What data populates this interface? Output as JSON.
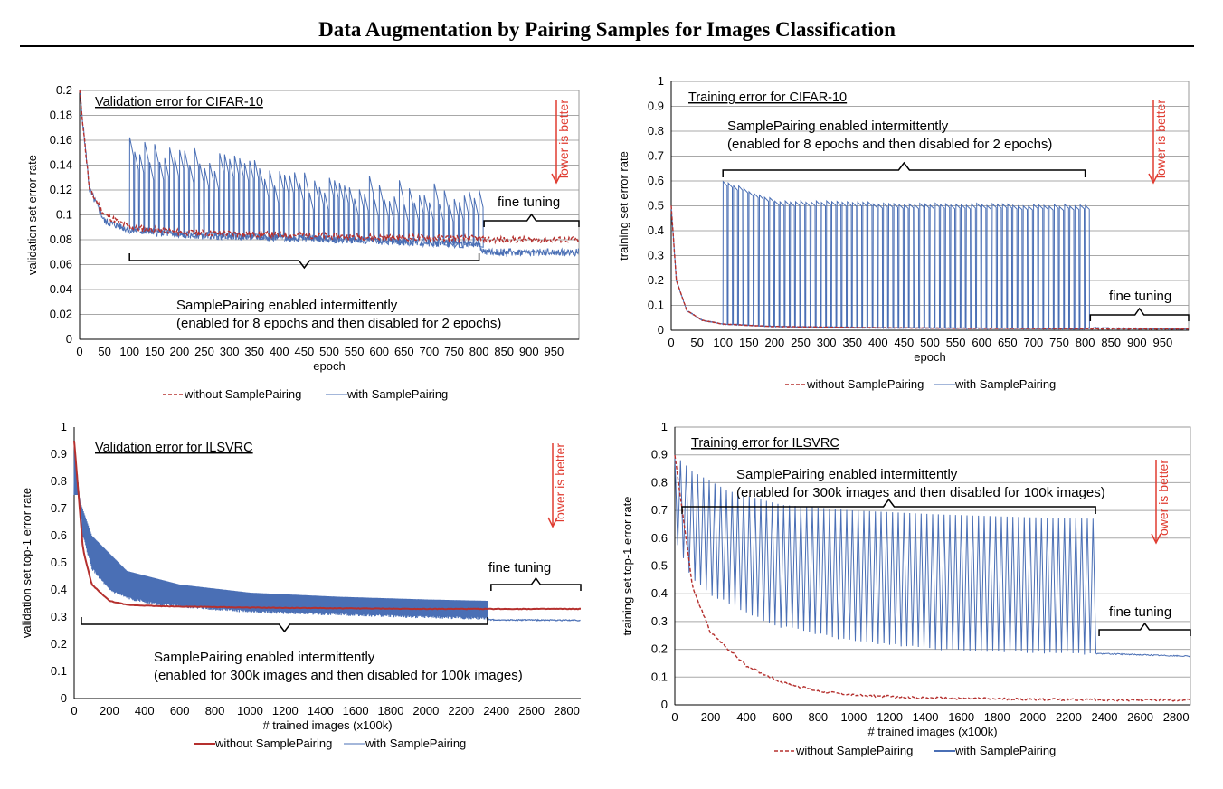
{
  "page": {
    "title": "Data Augmentation by Pairing Samples for Images Classification"
  },
  "colors": {
    "without": "#b5302e",
    "with": "#4a6fb5",
    "lower_arrow": "#e03c31"
  },
  "chart_data": [
    {
      "id": "cifar-val",
      "type": "line",
      "title": "Validation error for CIFAR-10",
      "xlabel": "epoch",
      "ylabel": "validation set error rate",
      "xlim": [
        0,
        1000
      ],
      "ylim": [
        0,
        0.2
      ],
      "xticks": [
        "0",
        "50",
        "100",
        "150",
        "200",
        "250",
        "300",
        "350",
        "400",
        "450",
        "500",
        "550",
        "600",
        "650",
        "700",
        "750",
        "800",
        "850",
        "900",
        "950"
      ],
      "yticks": [
        "0",
        "0.02",
        "0.04",
        "0.06",
        "0.08",
        "0.1",
        "0.12",
        "0.14",
        "0.16",
        "0.18",
        "0.2"
      ],
      "grid": true,
      "annotations": {
        "main_line1": "SamplePairing enabled intermittently",
        "main_line2": "(enabled for 8 epochs and then disabled for 2 epochs)",
        "fine": "fine tuning",
        "lower": "lower is better"
      },
      "legend": {
        "placement": "bottom",
        "without": "without SamplePairing",
        "with": "with SamplePairing"
      },
      "series": [
        {
          "name": "without SamplePairing",
          "style": "dashed",
          "x": [
            0,
            20,
            50,
            100,
            200,
            400,
            600,
            800,
            810,
            1000
          ],
          "y": [
            0.2,
            0.12,
            0.1,
            0.09,
            0.086,
            0.084,
            0.082,
            0.081,
            0.08,
            0.08
          ]
        },
        {
          "name": "with SamplePairing",
          "style": "solid",
          "x": [
            0,
            20,
            50,
            100,
            200,
            400,
            600,
            800,
            810,
            1000
          ],
          "y": [
            0.2,
            0.12,
            0.095,
            0.088,
            0.084,
            0.082,
            0.079,
            0.076,
            0.07,
            0.07
          ],
          "spike_high": [
            0.155,
            0.142,
            0.128,
            0.118,
            0.115
          ],
          "spike_x": [
            100,
            250,
            450,
            650,
            800
          ]
        }
      ]
    },
    {
      "id": "cifar-train",
      "type": "line",
      "title": "Training error for CIFAR-10",
      "xlabel": "epoch",
      "ylabel": "training set error rate",
      "xlim": [
        0,
        1000
      ],
      "ylim": [
        0,
        1
      ],
      "xticks": [
        "0",
        "50",
        "100",
        "150",
        "200",
        "250",
        "300",
        "350",
        "400",
        "450",
        "500",
        "550",
        "600",
        "650",
        "700",
        "750",
        "800",
        "850",
        "900",
        "950"
      ],
      "yticks": [
        "0",
        "0.1",
        "0.2",
        "0.3",
        "0.4",
        "0.5",
        "0.6",
        "0.7",
        "0.8",
        "0.9",
        "1"
      ],
      "grid": true,
      "annotations": {
        "main_line1": "SamplePairing enabled intermittently",
        "main_line2": "(enabled for 8 epochs and then disabled for 2 epochs)",
        "fine": "fine tuning",
        "lower": "lower is better"
      },
      "legend": {
        "placement": "bottom",
        "without": "without SamplePairing",
        "with": "with SamplePairing"
      },
      "series": [
        {
          "name": "without SamplePairing",
          "style": "dashed",
          "x": [
            0,
            10,
            30,
            60,
            100,
            200,
            400,
            600,
            800,
            1000
          ],
          "y": [
            0.5,
            0.2,
            0.08,
            0.04,
            0.025,
            0.015,
            0.01,
            0.008,
            0.006,
            0.005
          ]
        },
        {
          "name": "with SamplePairing",
          "style": "solid",
          "x": [
            0,
            10,
            30,
            60,
            100,
            200,
            400,
            600,
            800,
            810,
            1000
          ],
          "y": [
            0.5,
            0.2,
            0.08,
            0.04,
            0.025,
            0.015,
            0.01,
            0.008,
            0.006,
            0.01,
            0.005
          ],
          "spike_high": [
            0.6,
            0.52,
            0.51,
            0.505,
            0.5
          ],
          "spike_x": [
            100,
            200,
            400,
            600,
            800
          ]
        }
      ]
    },
    {
      "id": "ilsvrc-val",
      "type": "line",
      "title": "Validation error for ILSVRC",
      "xlabel": "# trained images (x100k)",
      "ylabel": "validation set  top-1 error rate",
      "xlim": [
        0,
        2880
      ],
      "ylim": [
        0,
        1
      ],
      "xticks": [
        "0",
        "200",
        "400",
        "600",
        "800",
        "1000",
        "1200",
        "1400",
        "1600",
        "1800",
        "2000",
        "2200",
        "2400",
        "2600",
        "2800"
      ],
      "yticks": [
        "0",
        "0.1",
        "0.2",
        "0.3",
        "0.4",
        "0.5",
        "0.6",
        "0.7",
        "0.8",
        "0.9",
        "1"
      ],
      "grid": false,
      "annotations": {
        "main_line1": "SamplePairing enabled intermittently",
        "main_line2": "(enabled for 300k images and then disabled for 100k images)",
        "fine": "fine tuning",
        "lower": "lower is better"
      },
      "legend": {
        "placement": "bottom",
        "without": "without SamplePairing",
        "with": "with SamplePairing"
      },
      "series": [
        {
          "name": "without SamplePairing",
          "style": "solid",
          "x": [
            0,
            50,
            100,
            200,
            300,
            500,
            1000,
            2000,
            2350,
            2360,
            2880
          ],
          "y": [
            0.95,
            0.55,
            0.42,
            0.36,
            0.345,
            0.34,
            0.335,
            0.33,
            0.33,
            0.33,
            0.33
          ]
        },
        {
          "name": "with SamplePairing",
          "style": "solid",
          "x": [
            0,
            50,
            100,
            200,
            300,
            500,
            1000,
            2000,
            2350,
            2360,
            2880
          ],
          "y": [
            0.95,
            0.6,
            0.48,
            0.4,
            0.37,
            0.345,
            0.32,
            0.3,
            0.295,
            0.29,
            0.288
          ],
          "band_high_x": [
            20,
            100,
            300,
            600,
            1000,
            1500,
            2000,
            2350
          ],
          "band_high_y": [
            0.75,
            0.6,
            0.47,
            0.42,
            0.39,
            0.375,
            0.365,
            0.36
          ]
        }
      ]
    },
    {
      "id": "ilsvrc-train",
      "type": "line",
      "title": "Training error for ILSVRC",
      "xlabel": "# trained images (x100k)",
      "ylabel": "training set  top-1 error rate",
      "xlim": [
        0,
        2880
      ],
      "ylim": [
        0,
        1
      ],
      "xticks": [
        "0",
        "200",
        "400",
        "600",
        "800",
        "1000",
        "1200",
        "1400",
        "1600",
        "1800",
        "2000",
        "2200",
        "2400",
        "2600",
        "2800"
      ],
      "yticks": [
        "0",
        "0.1",
        "0.2",
        "0.3",
        "0.4",
        "0.5",
        "0.6",
        "0.7",
        "0.8",
        "0.9",
        "1"
      ],
      "grid": true,
      "annotations": {
        "main_line1": "SamplePairing enabled intermittently",
        "main_line2": "(enabled for 300k images and then disabled for 100k images)",
        "fine": "fine tuning",
        "lower": "lower is better"
      },
      "legend": {
        "placement": "bottom",
        "without": "without SamplePairing",
        "with": "with SamplePairing"
      },
      "series": [
        {
          "name": "without SamplePairing",
          "style": "dashed",
          "x": [
            0,
            100,
            200,
            400,
            600,
            800,
            1000,
            1400,
            2000,
            2400,
            2880
          ],
          "y": [
            0.9,
            0.42,
            0.26,
            0.14,
            0.08,
            0.05,
            0.035,
            0.025,
            0.02,
            0.018,
            0.017
          ]
        },
        {
          "name": "with SamplePairing",
          "style": "solid",
          "x": [
            0,
            100,
            200,
            400,
            600,
            1000,
            1500,
            2000,
            2350,
            2360,
            2880
          ],
          "y": [
            0.6,
            0.45,
            0.4,
            0.33,
            0.28,
            0.23,
            0.2,
            0.19,
            0.185,
            0.185,
            0.175
          ],
          "band_high_x": [
            0,
            100,
            300,
            600,
            1000,
            1500,
            2000,
            2350
          ],
          "band_high_y": [
            0.9,
            0.84,
            0.77,
            0.72,
            0.7,
            0.685,
            0.675,
            0.67
          ]
        }
      ]
    }
  ]
}
